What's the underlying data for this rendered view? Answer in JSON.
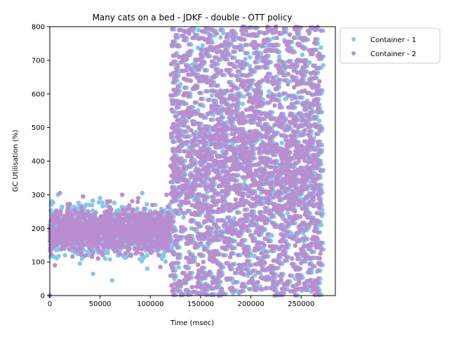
{
  "chart_data": {
    "type": "scatter",
    "title": "Many cats on a bed - JDKF - double -  OTT policy",
    "xlabel": "Time (msec)",
    "ylabel": "GC Utilisation (%)",
    "xlim": [
      0,
      284000
    ],
    "ylim": [
      0,
      800
    ],
    "xticks": [
      0,
      50000,
      100000,
      150000,
      200000,
      250000
    ],
    "xtick_labels": [
      "0",
      "50000",
      "100000",
      "150000",
      "200000",
      "250000"
    ],
    "yticks": [
      0,
      100,
      200,
      300,
      400,
      500,
      600,
      700,
      800
    ],
    "ytick_labels": [
      "0",
      "100",
      "200",
      "300",
      "400",
      "500",
      "600",
      "700",
      "800"
    ],
    "grid": false,
    "legend_position": "upper right, outside axes",
    "series": [
      {
        "name": "Container - 1",
        "color": "#87c6ea",
        "segments": [
          {
            "x_range": [
              0,
              122000
            ],
            "y_center": 190,
            "y_spread": [
              45,
              310
            ]
          },
          {
            "x_range": [
              122000,
              272000
            ],
            "y_center": 400,
            "y_spread": [
              0,
              800
            ]
          }
        ],
        "points": [
          [
            2000,
            280
          ],
          [
            8000,
            300
          ],
          [
            15000,
            120
          ],
          [
            22000,
            250
          ],
          [
            30000,
            95
          ],
          [
            36000,
            270
          ],
          [
            43000,
            65
          ],
          [
            50000,
            290
          ],
          [
            55000,
            110
          ],
          [
            62000,
            45
          ],
          [
            70000,
            200
          ],
          [
            78000,
            260
          ],
          [
            85000,
            140
          ],
          [
            92000,
            305
          ],
          [
            97000,
            80
          ],
          [
            105000,
            270
          ],
          [
            112000,
            150
          ],
          [
            118000,
            230
          ],
          [
            125000,
            685
          ],
          [
            128000,
            40
          ],
          [
            132000,
            310
          ],
          [
            136000,
            760
          ],
          [
            142000,
            120
          ],
          [
            148000,
            790
          ],
          [
            152000,
            470
          ],
          [
            158000,
            25
          ],
          [
            163000,
            650
          ],
          [
            168000,
            5
          ],
          [
            174000,
            740
          ],
          [
            180000,
            560
          ],
          [
            186000,
            15
          ],
          [
            192000,
            780
          ],
          [
            198000,
            420
          ],
          [
            204000,
            60
          ],
          [
            210000,
            700
          ],
          [
            216000,
            250
          ],
          [
            222000,
            30
          ],
          [
            228000,
            600
          ],
          [
            234000,
            330
          ],
          [
            240000,
            560
          ],
          [
            246000,
            120
          ],
          [
            252000,
            740
          ],
          [
            256000,
            580
          ],
          [
            260000,
            270
          ],
          [
            264000,
            790
          ],
          [
            268000,
            520
          ],
          [
            270000,
            210
          ]
        ]
      },
      {
        "name": "Container - 2",
        "color": "#b98ed0",
        "segments": [
          {
            "x_range": [
              0,
              120000
            ],
            "y_center": 195,
            "y_spread": [
              80,
              310
            ]
          },
          {
            "x_range": [
              120000,
              270000
            ],
            "y_center": 400,
            "y_spread": [
              0,
              800
            ]
          }
        ],
        "points": [
          [
            0,
            0
          ],
          [
            5000,
            90
          ],
          [
            10000,
            305
          ],
          [
            18000,
            260
          ],
          [
            25000,
            140
          ],
          [
            33000,
            295
          ],
          [
            40000,
            200
          ],
          [
            48000,
            110
          ],
          [
            57000,
            280
          ],
          [
            64000,
            170
          ],
          [
            72000,
            300
          ],
          [
            80000,
            120
          ],
          [
            88000,
            290
          ],
          [
            95000,
            160
          ],
          [
            103000,
            245
          ],
          [
            110000,
            85
          ],
          [
            116000,
            300
          ],
          [
            121000,
            30
          ],
          [
            126000,
            610
          ],
          [
            130000,
            790
          ],
          [
            135000,
            40
          ],
          [
            140000,
            540
          ],
          [
            146000,
            700
          ],
          [
            150000,
            25
          ],
          [
            155000,
            640
          ],
          [
            161000,
            330
          ],
          [
            166000,
            780
          ],
          [
            171000,
            20
          ],
          [
            177000,
            720
          ],
          [
            183000,
            480
          ],
          [
            189000,
            10
          ],
          [
            195000,
            790
          ],
          [
            201000,
            560
          ],
          [
            207000,
            40
          ],
          [
            213000,
            760
          ],
          [
            219000,
            300
          ],
          [
            225000,
            800
          ],
          [
            231000,
            20
          ],
          [
            237000,
            500
          ],
          [
            243000,
            620
          ],
          [
            249000,
            80
          ],
          [
            254000,
            700
          ],
          [
            258000,
            780
          ],
          [
            262000,
            460
          ],
          [
            266000,
            170
          ],
          [
            268000,
            720
          ]
        ]
      }
    ]
  }
}
